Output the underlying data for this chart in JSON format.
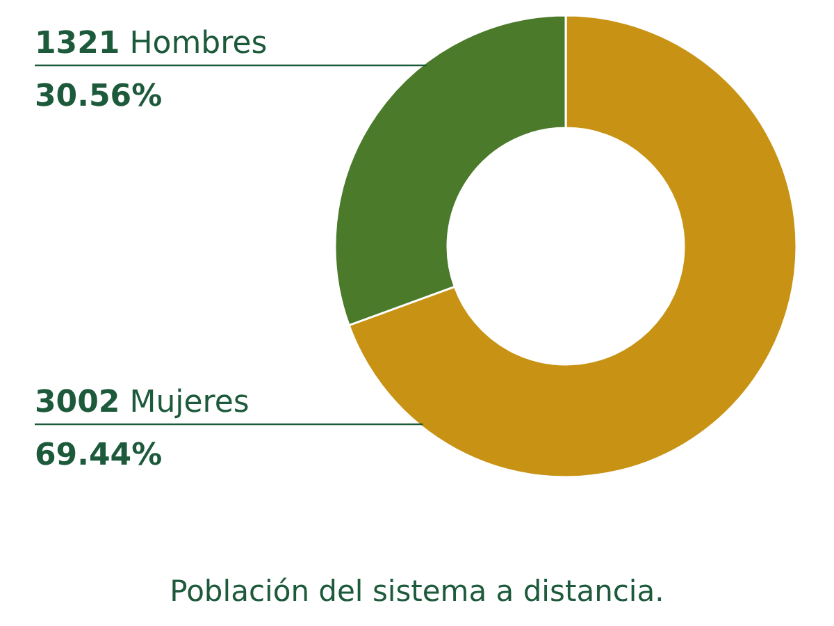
{
  "chart_data": {
    "type": "donut",
    "title": "Población del sistema a distancia.",
    "categories": [
      "3002 Mujeres",
      "1321 Hombres"
    ],
    "values": [
      69.44,
      30.56
    ],
    "colors": [
      "#c89214",
      "#4a7a2a"
    ],
    "value_labels": [
      "69.44%",
      "30.56%"
    ]
  }
}
